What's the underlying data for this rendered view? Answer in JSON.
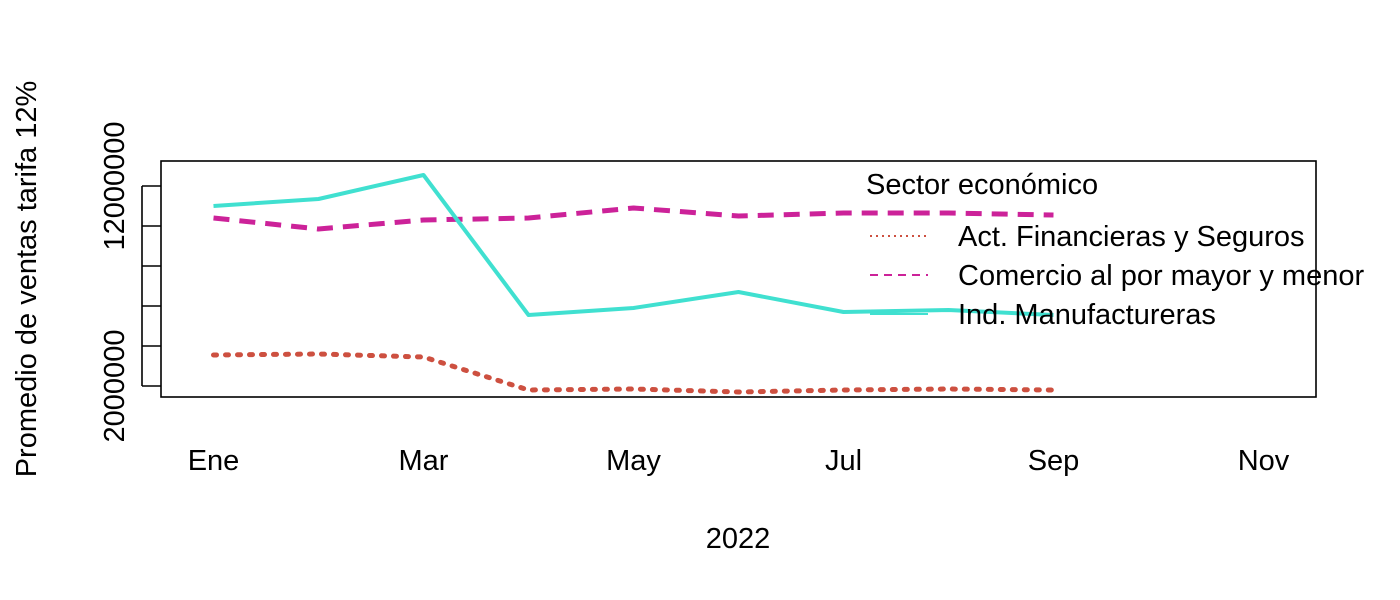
{
  "chart_data": {
    "type": "line",
    "title": "",
    "xlabel": "2022",
    "ylabel": "Promedio de ventas tarifa 12%",
    "x": [
      1,
      2,
      3,
      4,
      5,
      6,
      7,
      8,
      9
    ],
    "xlim": [
      0.5,
      11.5
    ],
    "ylim": [
      1450000,
      13250000
    ],
    "x_ticks": [
      1,
      3,
      5,
      7,
      9,
      11
    ],
    "x_tick_labels": [
      "Ene",
      "Mar",
      "May",
      "Jul",
      "Sep",
      "Nov"
    ],
    "y_ticks": [
      2000000,
      4000000,
      6000000,
      8000000,
      10000000,
      12000000
    ],
    "y_tick_labels": [
      "2000000",
      "",
      "",
      "",
      "",
      "12000000"
    ],
    "grid": false,
    "legend": {
      "title": "Sector económico",
      "position": "top-right"
    },
    "series": [
      {
        "name": "Act. Financieras y Seguros",
        "color": "#cd5040",
        "dash": "dotted",
        "values": [
          3550000,
          3600000,
          3450000,
          1800000,
          1850000,
          1700000,
          1800000,
          1850000,
          1800000
        ]
      },
      {
        "name": "Comercio al por mayor y menor",
        "color": "#cc2299",
        "dash": "dashed",
        "values": [
          10400000,
          9850000,
          10300000,
          10400000,
          10900000,
          10500000,
          10650000,
          10650000,
          10550000
        ]
      },
      {
        "name": "Ind. Manufactureras",
        "color": "#40e0d0",
        "dash": "solid",
        "values": [
          11000000,
          11350000,
          12550000,
          5550000,
          5900000,
          6700000,
          5700000,
          5800000,
          5550000
        ]
      }
    ]
  }
}
